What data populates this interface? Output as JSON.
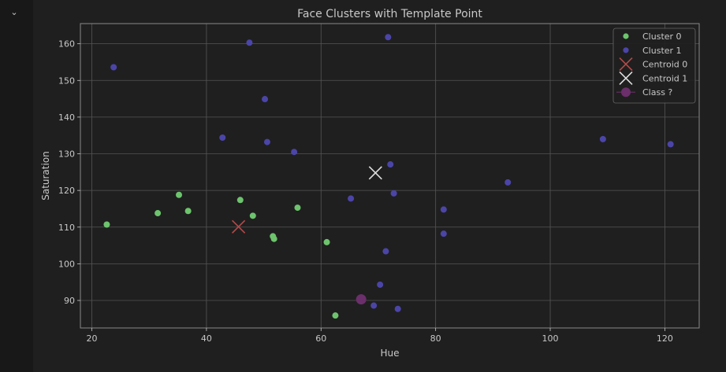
{
  "cell": {
    "collapse_icon": "chevron-down-icon",
    "collapse_glyph": "⌄"
  },
  "chart_data": {
    "type": "scatter",
    "title": "Face Clusters with Template Point",
    "xlabel": "Hue",
    "ylabel": "Saturation",
    "xlim": [
      18,
      126
    ],
    "ylim": [
      82.5,
      165.5
    ],
    "xticks": [
      20,
      40,
      60,
      80,
      100,
      120
    ],
    "yticks": [
      90,
      100,
      110,
      120,
      130,
      140,
      150,
      160
    ],
    "grid": true,
    "legend_position": "top-right",
    "colors": {
      "background": "#1f1f1f",
      "axes_background": "#1f1f1f",
      "grid": "#555555",
      "text": "#c8c8c8",
      "cluster0": "#6dc46d",
      "cluster1": "#4b45a8",
      "centroid0": "#b34a4a",
      "centroid1": "#dddddd",
      "template": "#6b2f6b"
    },
    "series": [
      {
        "name": "Cluster 0",
        "marker": "circle",
        "points": [
          [
            22.6,
            110.7
          ],
          [
            31.5,
            113.8
          ],
          [
            35.2,
            118.8
          ],
          [
            36.8,
            114.4
          ],
          [
            45.9,
            117.4
          ],
          [
            48.1,
            113.1
          ],
          [
            51.6,
            107.5
          ],
          [
            51.8,
            106.8
          ],
          [
            55.9,
            115.3
          ],
          [
            61.0,
            105.9
          ],
          [
            62.5,
            85.9
          ]
        ]
      },
      {
        "name": "Cluster 1",
        "marker": "circle",
        "points": [
          [
            23.8,
            153.6
          ],
          [
            42.8,
            134.4
          ],
          [
            47.5,
            160.3
          ],
          [
            50.2,
            144.9
          ],
          [
            50.6,
            133.2
          ],
          [
            55.3,
            130.5
          ],
          [
            65.2,
            117.8
          ],
          [
            69.2,
            88.6
          ],
          [
            70.3,
            94.3
          ],
          [
            71.3,
            103.4
          ],
          [
            71.7,
            161.8
          ],
          [
            72.1,
            127.1
          ],
          [
            72.7,
            119.2
          ],
          [
            73.4,
            87.7
          ],
          [
            81.4,
            114.8
          ],
          [
            81.4,
            108.2
          ],
          [
            92.6,
            122.2
          ],
          [
            109.2,
            134.0
          ],
          [
            121.0,
            132.6
          ]
        ]
      },
      {
        "name": "Centroid 0",
        "marker": "x",
        "points": [
          [
            45.6,
            110.1
          ]
        ]
      },
      {
        "name": "Centroid 1",
        "marker": "x",
        "points": [
          [
            69.5,
            124.8
          ]
        ]
      },
      {
        "name": "Class ?",
        "marker": "circle-line",
        "points": [
          [
            67.0,
            90.3
          ]
        ]
      }
    ]
  }
}
